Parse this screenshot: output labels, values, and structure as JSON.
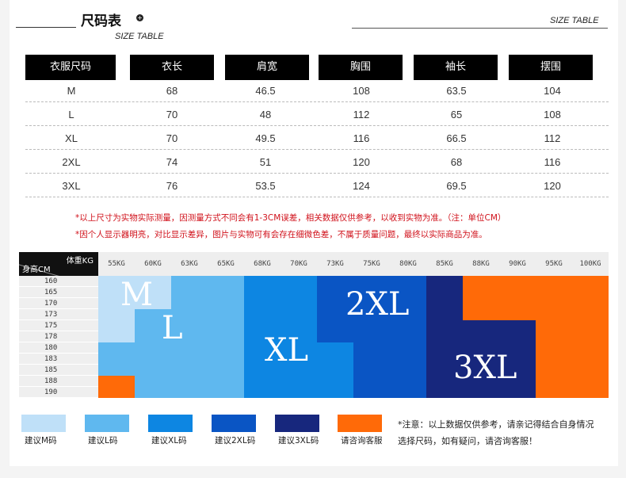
{
  "header": {
    "title": "尺码表",
    "subtitle": "SIZE TABLE",
    "right_label": "SIZE TABLE"
  },
  "size_table": {
    "columns": [
      "衣服尺码",
      "衣长",
      "肩宽",
      "胸围",
      "袖长",
      "摆围"
    ],
    "rows": [
      [
        "M",
        "68",
        "46.5",
        "108",
        "63.5",
        "104"
      ],
      [
        "L",
        "70",
        "48",
        "112",
        "65",
        "108"
      ],
      [
        "XL",
        "70",
        "49.5",
        "116",
        "66.5",
        "112"
      ],
      [
        "2XL",
        "74",
        "51",
        "120",
        "68",
        "116"
      ],
      [
        "3XL",
        "76",
        "53.5",
        "124",
        "69.5",
        "120"
      ]
    ]
  },
  "notes": [
    "*以上尺寸为实物实际测量，因测量方式不同会有1-3CM误差，相关数据仅供参考，以收到实物为准。（注：单位CM）",
    "*因个人显示器明亮，对比显示差异，图片与实物可有会存在细微色差，不属于质量问题，最终以实际商品为准。"
  ],
  "fit_grid": {
    "weight_header": "体重KG",
    "height_header": "身高CM",
    "weights": [
      "55KG",
      "60KG",
      "63KG",
      "65KG",
      "68KG",
      "70KG",
      "73KG",
      "75KG",
      "80KG",
      "85KG",
      "88KG",
      "90KG",
      "95KG",
      "100KG"
    ],
    "heights": [
      "160",
      "165",
      "170",
      "173",
      "175",
      "178",
      "180",
      "183",
      "185",
      "188",
      "190"
    ],
    "size_labels": [
      "M",
      "L",
      "XL",
      "2XL",
      "3XL"
    ],
    "cells": [
      "MMLLXXXXXX3333",
      "MMLLXXXXXX3333",
      "MMLLXXXXXX3333",
      "LLLLXXXXXX3333",
      "LLLLXXXXXXXX33",
      "LLLLXXXXXXXX33",
      "LLLLXXXXXXXXX3",
      "LLLLXXXXXXXXX3",
      "LLLLXXXXXXXXX3",
      "3LLLXXXXXXXXX3",
      "3LLLXXXXXXXXX3"
    ]
  },
  "colors": {
    "M": "#bfe0f8",
    "L": "#5fb8ef",
    "X": "#0d86e2",
    "2": "#0a55c4",
    "Y": "#17277d",
    "3": "#ff6a08"
  },
  "legend": {
    "items": [
      {
        "label": "建议M码",
        "color": "#bfe0f8"
      },
      {
        "label": "建议L码",
        "color": "#5fb8ef"
      },
      {
        "label": "建议XL码",
        "color": "#0d86e2"
      },
      {
        "label": "建议2XL码",
        "color": "#0a55c4"
      },
      {
        "label": "建议3XL码",
        "color": "#17277d"
      },
      {
        "label": "请咨询客服",
        "color": "#ff6a08"
      }
    ],
    "note_line1": "*注意：以上数据仅供参考，请亲记得结合自身情况",
    "note_line2": "选择尺码，如有疑问，请咨询客服！"
  }
}
